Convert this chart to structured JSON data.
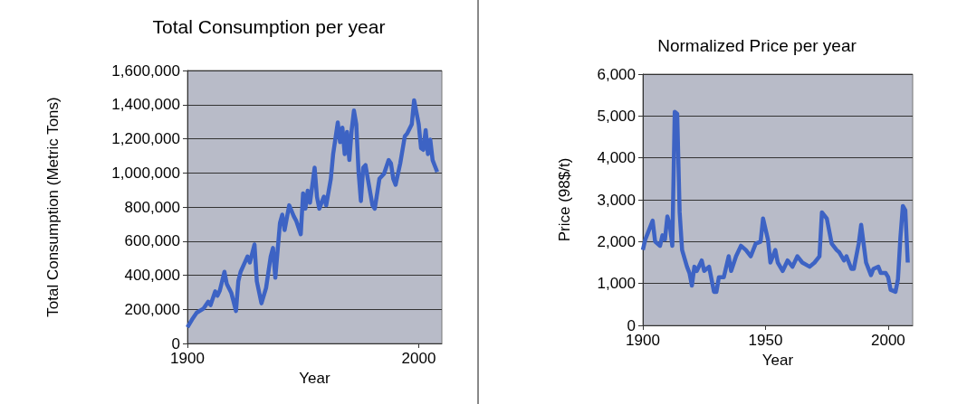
{
  "chart_data": [
    {
      "type": "line",
      "title": "Total Consumption per year",
      "xlabel": "Year",
      "ylabel": "Total Consumption (Metric Tons)",
      "color": "#3d63c4",
      "grid": "y",
      "x": [
        1900,
        1902,
        1904,
        1907,
        1908,
        1909,
        1910,
        1912,
        1913,
        1914,
        1916,
        1917,
        1919,
        1921,
        1922,
        1923,
        1925,
        1926,
        1927,
        1929,
        1930,
        1932,
        1934,
        1936,
        1937,
        1938,
        1939,
        1940,
        1941,
        1942,
        1944,
        1946,
        1947,
        1949,
        1950,
        1951,
        1952,
        1953,
        1955,
        1956,
        1957,
        1959,
        1960,
        1962,
        1963,
        1965,
        1966,
        1967,
        1968,
        1969,
        1970,
        1971,
        1972,
        1973,
        1974,
        1975,
        1976,
        1977,
        1978,
        1980,
        1981,
        1983,
        1985,
        1987,
        1988,
        1989,
        1990,
        1992,
        1994,
        1995,
        1997,
        1998,
        2000,
        2001,
        2002,
        2003,
        2004,
        2005,
        2006,
        2007,
        2008
      ],
      "values": [
        95000,
        140000,
        180000,
        205000,
        225000,
        245000,
        225000,
        305000,
        280000,
        310000,
        420000,
        350000,
        295000,
        190000,
        365000,
        420000,
        480000,
        510000,
        475000,
        580000,
        365000,
        235000,
        325000,
        510000,
        560000,
        385000,
        545000,
        705000,
        755000,
        665000,
        810000,
        745000,
        720000,
        640000,
        880000,
        790000,
        895000,
        825000,
        1030000,
        860000,
        790000,
        860000,
        810000,
        965000,
        1110000,
        1295000,
        1180000,
        1265000,
        1110000,
        1240000,
        1075000,
        1250000,
        1365000,
        1285000,
        1005000,
        835000,
        1030000,
        1045000,
        965000,
        810000,
        790000,
        965000,
        995000,
        1075000,
        1055000,
        965000,
        930000,
        1055000,
        1215000,
        1230000,
        1285000,
        1425000,
        1285000,
        1145000,
        1135000,
        1250000,
        1110000,
        1195000,
        1075000,
        1040000,
        1005000
      ],
      "xlim": [
        1900,
        2010
      ],
      "xticks": [
        1900,
        2000
      ],
      "ylim": [
        0,
        1600000
      ],
      "yticks": [
        0,
        {
          "value": 200000,
          "label": "200,000"
        },
        {
          "value": 400000,
          "label": "400,000"
        },
        {
          "value": 600000,
          "label": "600,000"
        },
        {
          "value": 800000,
          "label": "800,000"
        },
        {
          "value": 1000000,
          "label": "1,000,000"
        },
        {
          "value": 1200000,
          "label": "1,200,000"
        },
        {
          "value": 1400000,
          "label": "1,400,000"
        },
        {
          "value": 1600000,
          "label": "1,600,000"
        }
      ]
    },
    {
      "type": "line",
      "title": "Normalized Price per year",
      "xlabel": "Year",
      "ylabel": "Price (98$/t)",
      "color": "#3d63c4",
      "grid": "y",
      "x": [
        1900,
        1901,
        1902,
        1904,
        1905,
        1907,
        1908,
        1909,
        1910,
        1911,
        1912,
        1913,
        1914,
        1915,
        1916,
        1918,
        1919,
        1920,
        1921,
        1922,
        1924,
        1925,
        1927,
        1928,
        1929,
        1930,
        1931,
        1933,
        1935,
        1936,
        1938,
        1940,
        1942,
        1944,
        1946,
        1948,
        1949,
        1951,
        1952,
        1954,
        1955,
        1957,
        1959,
        1961,
        1963,
        1965,
        1968,
        1970,
        1972,
        1973,
        1975,
        1977,
        1979,
        1980,
        1982,
        1983,
        1985,
        1986,
        1988,
        1989,
        1990,
        1991,
        1993,
        1994,
        1996,
        1997,
        1999,
        2000,
        2001,
        2003,
        2004,
        2005,
        2006,
        2007,
        2008
      ],
      "values": [
        1800,
        2050,
        2200,
        2500,
        2000,
        1900,
        2150,
        2050,
        2600,
        2400,
        1900,
        5100,
        5050,
        2700,
        1800,
        1400,
        1250,
        950,
        1400,
        1300,
        1550,
        1300,
        1400,
        1100,
        800,
        800,
        1150,
        1150,
        1650,
        1300,
        1650,
        1900,
        1800,
        1650,
        1950,
        2000,
        2550,
        2050,
        1500,
        1800,
        1500,
        1300,
        1550,
        1400,
        1650,
        1500,
        1400,
        1500,
        1650,
        2700,
        2550,
        1950,
        1800,
        1750,
        1550,
        1650,
        1350,
        1350,
        1950,
        2400,
        1950,
        1500,
        1200,
        1350,
        1400,
        1250,
        1250,
        1150,
        850,
        800,
        1100,
        2100,
        2850,
        2750,
        1500
      ],
      "xlim": [
        1900,
        2010
      ],
      "xticks": [
        1900,
        1950,
        2000
      ],
      "ylim": [
        0,
        6000
      ],
      "yticks": [
        0,
        {
          "value": 1000,
          "label": "1,000"
        },
        {
          "value": 2000,
          "label": "2,000"
        },
        {
          "value": 3000,
          "label": "3,000"
        },
        {
          "value": 4000,
          "label": "4,000"
        },
        {
          "value": 5000,
          "label": "5,000"
        },
        {
          "value": 6000,
          "label": "6,000"
        }
      ]
    }
  ]
}
